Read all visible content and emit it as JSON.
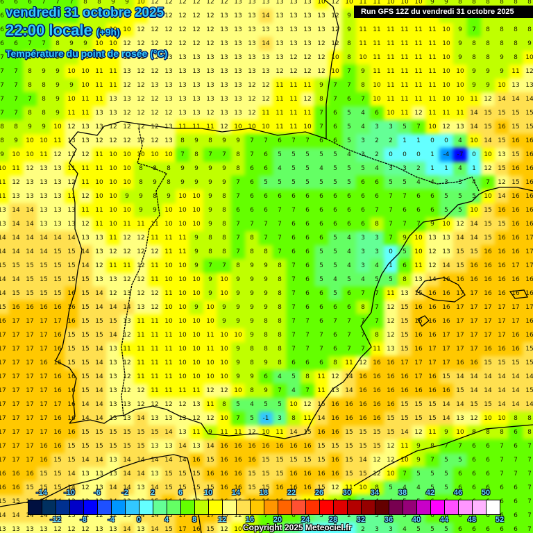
{
  "header": {
    "date": "vendredi 31 octobre 2025",
    "time": "22:00 locale",
    "offset": "(+9h)",
    "variable": "Température du point de rosée (°C)",
    "run": "Run GFS 12Z du vendredi 31 octobre 2025"
  },
  "footer": {
    "copyright": "Copyright 2025 Meteociel.fr"
  },
  "legend": {
    "upper_ticks": [
      "-14",
      "-10",
      "-6",
      "-2",
      "2",
      "6",
      "10",
      "14",
      "18",
      "22",
      "26",
      "30",
      "34",
      "38",
      "42",
      "46",
      "50"
    ],
    "lower_ticks": [
      "-12",
      "-8",
      "-4",
      "0",
      "4",
      "8",
      "12",
      "16",
      "20",
      "24",
      "28",
      "32",
      "36",
      "40",
      "44",
      "48",
      "52"
    ],
    "colors": [
      "#001040",
      "#003060",
      "#003090",
      "#0000c8",
      "#0000ff",
      "#1e50ff",
      "#0096ff",
      "#32c8ff",
      "#64ffff",
      "#64ff96",
      "#64ff64",
      "#64ff00",
      "#c0ff00",
      "#ffff00",
      "#ffff80",
      "#ffe050",
      "#ffc800",
      "#ff9600",
      "#ff6400",
      "#ff5032",
      "#ff3200",
      "#ff0000",
      "#e10000",
      "#b40000",
      "#960000",
      "#640000",
      "#780050",
      "#960078",
      "#c800c8",
      "#ff00ff",
      "#ff50ff",
      "#ff96ff",
      "#ffb4ff",
      "#ffffff"
    ]
  },
  "grid": {
    "cols": 39,
    "rows": [
      "6 6 6 7 7 7 8 8 9 9 10 12 12 12 12 12 12 13 13 13 13 13 13 10 12 10 11 11 10 10 10 9 9 8 8 8 8 8 8",
      "6 6 6 7 7 7 8 9 9 10 11 12 12 12 12 12 13 13 13 14 13 13 13 13 12 9 11 11 11 11 10 10 9 8 6 8 8 8 8",
      "6 6 7 7 8 8 9 9 10 10 12 12 12 12 12 12 13 13 13 13 13 13 13 13 12 9 11 11 11 11 11 11 10 9 7 8 8 8 8",
      "6 6 7 7 8 9 9 10 10 12 12 12 12 12 12 12 13 13 13 14 13 13 13 12 12 8 11 11 11 11 11 11 10 9 8 8 8 8 9",
      "7 7 8 8 9 9 10 11 11 12 12 12 13 13 13 13 13 13 13 13 13 12 12 12 10 8 10 11 11 11 11 11 10 9 8 8 9 8 10",
      "7 7 8 9 9 10 10 11 11 13 12 12 13 13 13 13 13 13 13 13 12 12 12 12 10 7 9 11 11 11 11 11 10 10 9 9 9 11 12",
      "7 7 8 8 9 9 10 11 11 12 12 13 13 13 13 13 13 13 12 12 11 11 11 9 7 7 8 10 11 11 11 11 10 10 9 9 10 13 13",
      "7 7 7 8 9 10 11 11 13 13 12 12 13 13 13 13 13 13 12 12 11 11 12 8 7 6 7 10 11 11 11 11 10 10 11 12 14 14 14",
      "7 7 8 8 9 11 11 13 13 12 12 12 12 13 13 12 13 13 12 11 11 11 11 7 6 5 4 6 10 11 12 11 11 11 14 15 15 15 15",
      "8 8 9 9 10 12 13 13 12 12 12 12 13 11 11 11 12 10 10 10 11 11 10 7 6 5 4 3 3 5 7 10 12 13 14 15 16 15 15",
      "8 9 10 10 11 13 13 12 12 12 12 12 13 8 9 8 9 9 7 7 6 7 7 6 6 5 3 2 2 1 1 0 0 4 10 14 15 16 16",
      "9 10 10 11 12 13 12 11 10 10 10 10 10 7 8 7 7 8 7 6 5 5 5 5 5 4 3 2 0 0 0 1 -4 -7 0 10 13 15 16",
      "10 11 12 13 13 11 11 11 10 10 8 8 8 9 9 9 9 8 6 6 4 5 5 4 5 5 5 4 3 3 2 1 1 4 1 12 15 16 16",
      "11 12 13 13 13 12 11 10 10 10 8 9 8 9 9 9 9 7 6 5 5 5 5 5 5 5 6 6 5 5 4 4 3 3 4 7 12 15 16",
      "11 13 13 13 13 11 12 10 10 9 9 8 9 10 10 9 8 7 6 6 6 6 6 6 6 6 6 6 7 7 6 6 5 5 5 10 14 16 16",
      "13 14 14 13 13 13 11 11 10 10 9 9 10 10 10 9 8 6 6 6 7 7 6 6 6 6 6 7 7 6 6 6 5 5 10 15 16 16 16",
      "13 14 14 13 13 13 12 11 10 11 11 11 10 10 10 9 8 7 7 7 7 6 6 6 6 6 6 8 7 7 7 9 10 12 14 15 15 16 16",
      "14 14 14 14 14 14 13 13 11 12 12 11 11 11 9 8 8 7 8 7 7 6 6 6 5 4 3 3 7 9 10 13 13 14 14 15 16 16 17",
      "14 14 14 14 15 15 14 13 12 12 12 12 11 11 9 8 8 7 8 8 7 6 6 5 5 4 3 3 0 5 10 12 13 15 15 16 16 16 17",
      "15 15 15 15 15 15 14 12 11 11 12 11 10 10 9 7 7 8 9 9 8 7 6 5 5 4 3 4 1 6 11 12 14 15 16 16 16 17 17",
      "14 14 15 15 15 15 15 13 13 12 12 11 10 10 10 9 10 9 9 9 8 7 6 5 4 5 4 5 5 8 13 14 16 16 16 16 16 16 16",
      "14 15 15 15 15 16 15 14 12 13 12 12 11 10 10 9 10 9 9 9 8 7 6 6 5 6 7 7 11 13 15 16 16 17 17 16 16 16 16",
      "15 16 16 16 16 16 15 14 14 14 13 12 10 10 9 10 9 9 9 9 8 7 6 6 6 6 8 7 12 15 16 16 16 17 17 17 17 17 17",
      "16 17 17 17 17 16 15 15 15 13 11 11 10 10 10 10 9 9 9 8 8 7 7 6 7 7 7 7 12 15 16 16 16 17 17 17 17 17 16",
      "17 17 17 17 16 15 15 15 14 12 11 11 11 10 10 11 10 10 9 8 8 7 7 7 6 7 7 8 12 15 16 16 17 17 17 17 17 16 16",
      "17 17 17 17 16 15 15 14 13 11 11 11 11 10 10 11 10 9 8 8 8 7 7 7 6 7 7 11 13 15 16 17 17 17 17 16 16 16 15",
      "17 17 17 16 16 15 15 14 13 12 11 11 11 10 10 10 10 9 8 9 8 6 6 6 8 11 12 16 16 17 17 17 17 16 16 15 15 15 15",
      "17 17 17 17 16 16 15 14 13 12 11 11 11 10 10 10 10 9 9 6 4 5 8 11 12 14 16 16 16 16 17 16 15 14 14 14 14 14 14",
      "17 17 17 17 16 16 15 14 13 12 12 11 11 11 11 12 12 10 8 9 7 4 7 11 13 14 16 16 16 16 16 16 16 15 14 14 14 14 15",
      "17 17 17 17 17 16 14 14 13 13 12 12 12 12 13 11 8 5 4 5 5 10 12 15 16 16 16 16 16 15 15 15 14 14 15 15 14 14 14",
      "17 17 17 17 16 16 14 14 13 13 14 13 13 13 12 12 10 7 5 -1 3 8 11 14 16 16 16 16 15 15 15 15 14 13 12 10 10 8 8",
      "17 17 17 17 16 16 15 15 15 15 15 15 14 13 11 9 11 11 12 10 11 14 15 16 16 15 15 15 15 14 12 11 9 10 8 8 8 6 8",
      "17 17 17 16 16 15 15 15 15 15 15 13 13 14 13 14 16 16 16 16 16 16 16 15 15 15 15 15 12 11 9 8 7 7 6 6 7 6 7",
      "17 17 17 16 15 15 14 14 13 14 14 14 14 14 16 15 16 16 16 15 15 15 15 15 16 15 14 12 12 10 9 7 5 5 6 6 7 7 7",
      "16 16 16 15 15 14 13 13 13 14 14 13 15 15 15 16 16 16 15 15 15 16 16 16 16 15 15 12 10 7 5 5 5 6 6 6 7 7 7",
      "16 16 15 15 15 14 12 13 14 14 13 14 15 15 15 15 16 16 15 15 16 16 16 15 12 11 10 8 5 4 4 5 5 6 6 6 6 6 7",
      "15 15 15 14 14 13 12 13 14 13 13 15 16 15 12 14 16 15 16 16 16 14 11 11 8 7 5 4 4 5 5 6 6 6 6 6 6 6 7",
      "14 14 14 14 13 13 12 12 12 13 14 14 15 17 17 17 15 12 9 7 6 6 5 3 2 2 3 3 4 5 5 6 6 6 6 6 6 6 7",
      "13 13 13 13 12 12 12 13 13 14 13 14 15 17 16 15 12 10 9 7 4 2 1 1 1 1 2 3 3 4 5 5 5 6 6 6 6 6 7"
    ]
  }
}
